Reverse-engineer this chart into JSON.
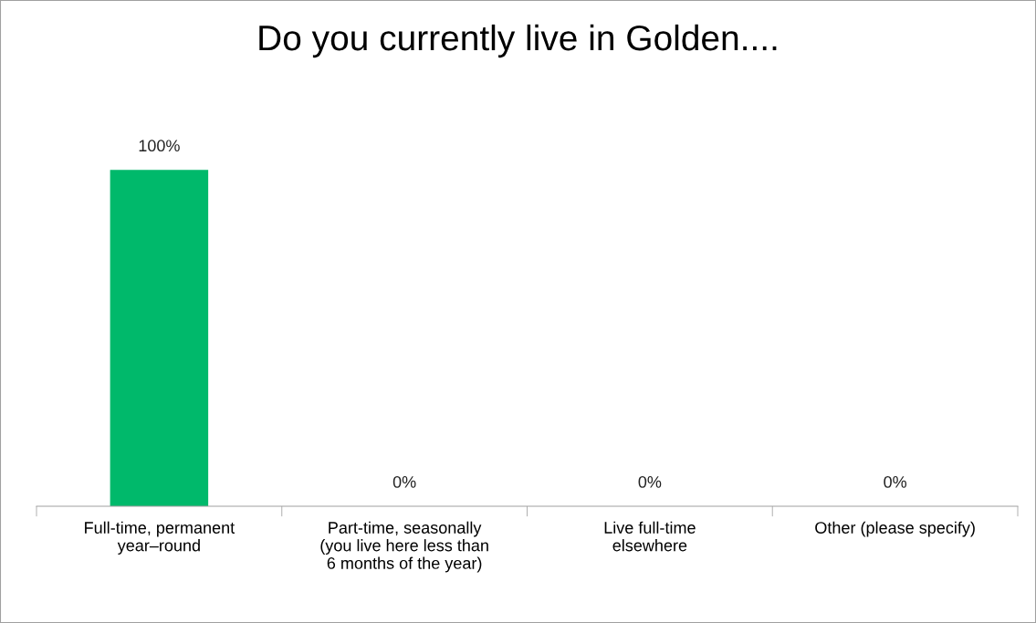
{
  "chart_data": {
    "type": "bar",
    "title": "Do you currently live in Golden....",
    "categories": [
      "Full-time, permanent\nyear–round",
      "Part-time, seasonally\n(you live here less than\n6 months of the year)",
      "Live full-time\nelsewhere",
      "Other (please specify)"
    ],
    "values": [
      100,
      0,
      0,
      0
    ],
    "value_labels": [
      "100%",
      "0%",
      "0%",
      "0%"
    ],
    "color": "#00b96b",
    "grid": false,
    "legend": false
  }
}
